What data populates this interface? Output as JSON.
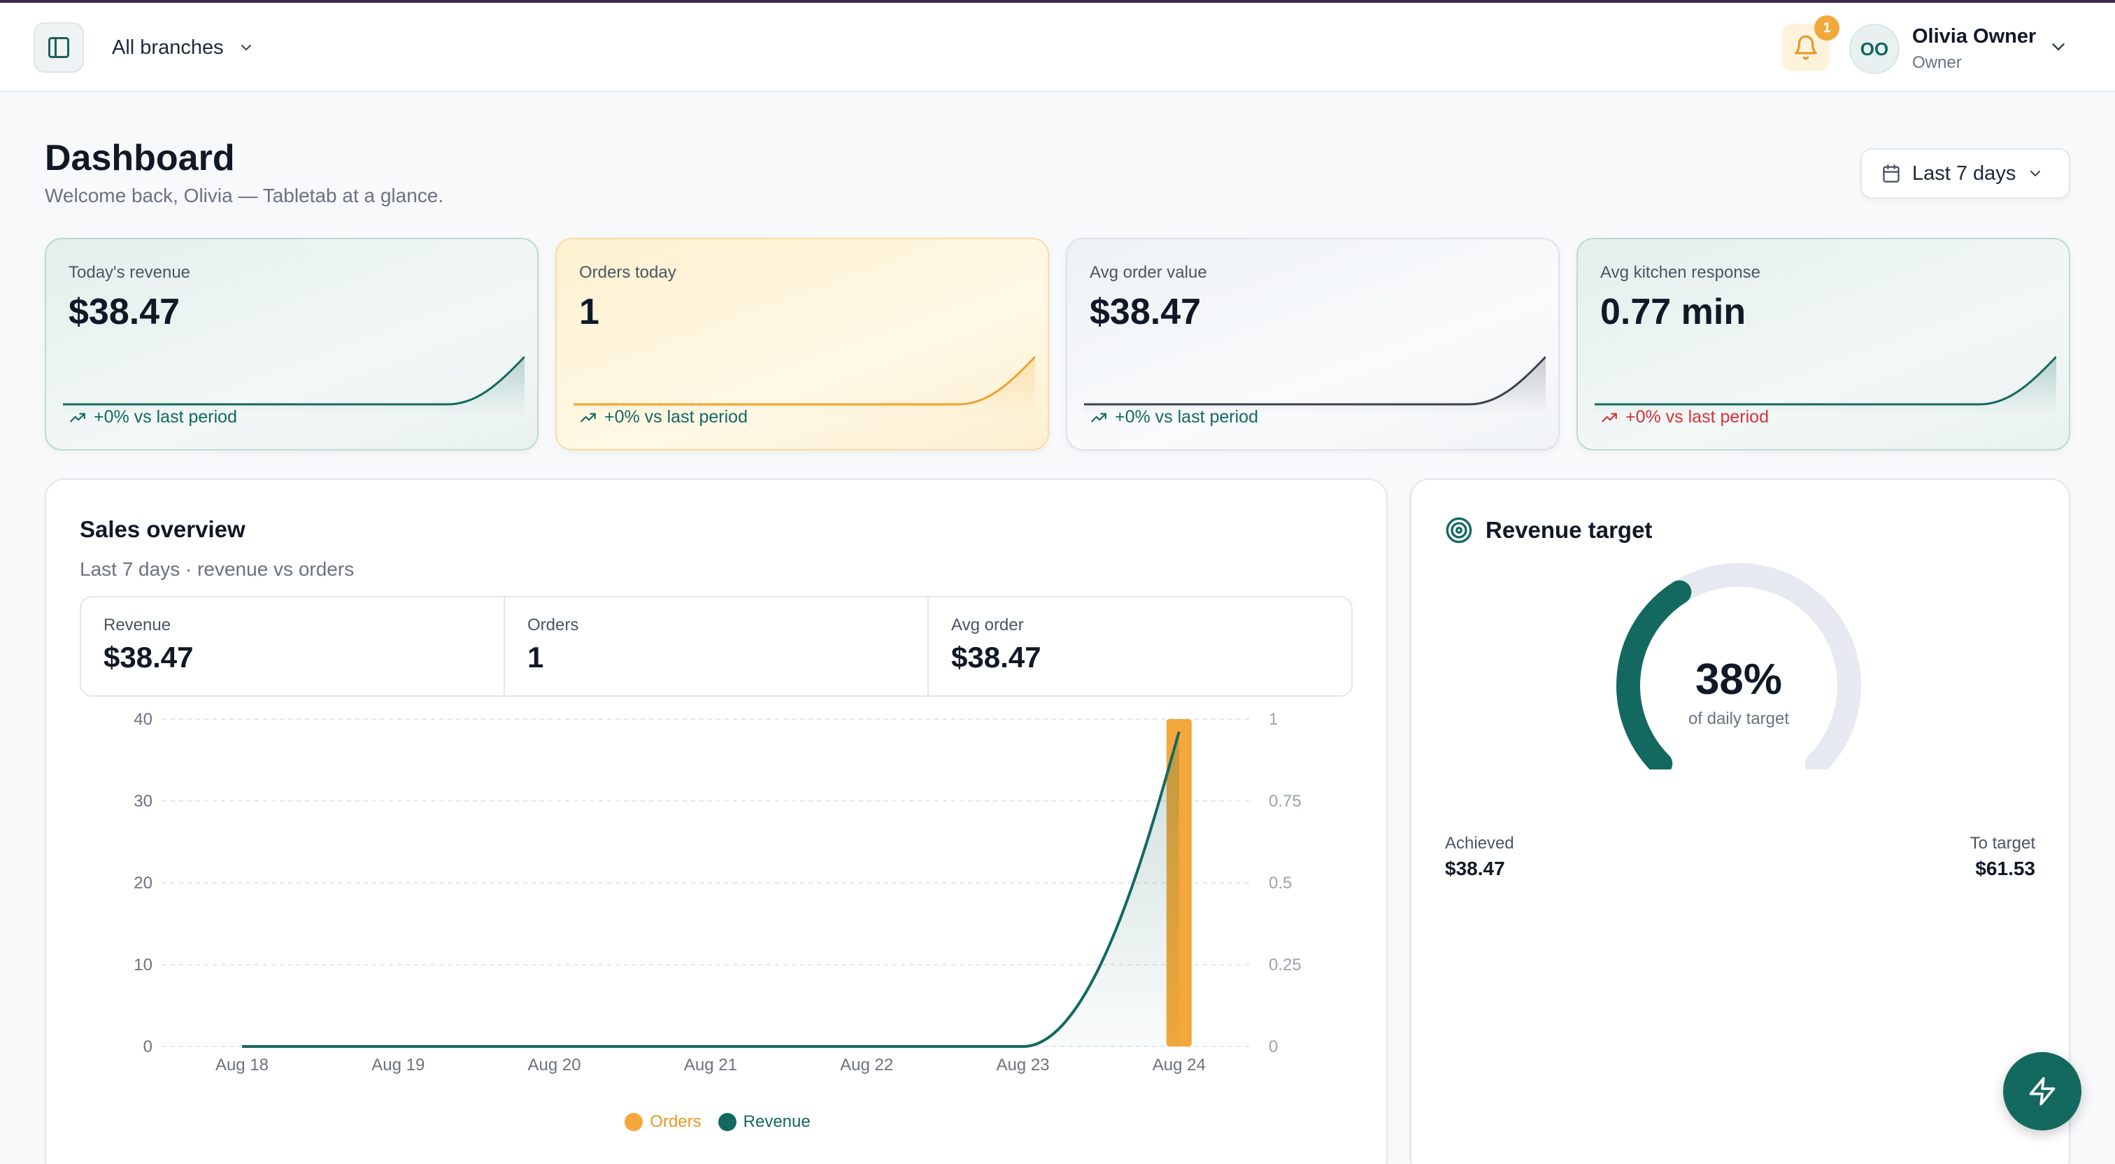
{
  "topbar": {
    "branch_label": "All branches",
    "notification_count": "1",
    "user": {
      "initials": "OO",
      "name": "Olivia Owner",
      "role": "Owner"
    }
  },
  "header": {
    "title": "Dashboard",
    "subtitle": "Welcome back, Olivia — Tabletab at a glance.",
    "range_label": "Last 7 days"
  },
  "kpis": [
    {
      "label": "Today's revenue",
      "value": "$38.47",
      "trend": "+0% vs last period",
      "trend_dir": "up",
      "color": "#13695f"
    },
    {
      "label": "Orders today",
      "value": "1",
      "trend": "+0% vs last period",
      "trend_dir": "up",
      "color": "#f0a12c"
    },
    {
      "label": "Avg order value",
      "value": "$38.47",
      "trend": "+0% vs last period",
      "trend_dir": "up",
      "color": "#3a4150"
    },
    {
      "label": "Avg kitchen response",
      "value": "0.77 min",
      "trend": "+0% vs last period",
      "trend_dir": "down",
      "color": "#13695f"
    }
  ],
  "sales": {
    "title": "Sales overview",
    "subtitle": "Last 7 days · revenue vs orders",
    "stats": [
      {
        "label": "Revenue",
        "value": "$38.47"
      },
      {
        "label": "Orders",
        "value": "1"
      },
      {
        "label": "Avg order",
        "value": "$38.47"
      }
    ],
    "legend": {
      "orders": "Orders",
      "revenue": "Revenue"
    }
  },
  "chart_data": {
    "type": "bar",
    "categories": [
      "Aug 18",
      "Aug 19",
      "Aug 20",
      "Aug 21",
      "Aug 22",
      "Aug 23",
      "Aug 24"
    ],
    "series": [
      {
        "name": "Orders",
        "type": "bar",
        "axis": "right",
        "color": "#f4a73a",
        "values": [
          0,
          0,
          0,
          0,
          0,
          0,
          1
        ]
      },
      {
        "name": "Revenue",
        "type": "area",
        "axis": "left",
        "color": "#13695f",
        "values": [
          0,
          0,
          0,
          0,
          0,
          0,
          38.47
        ]
      }
    ],
    "y_left": {
      "ticks": [
        "0",
        "10",
        "20",
        "30",
        "40"
      ],
      "lim": [
        0,
        40
      ]
    },
    "y_right": {
      "ticks": [
        "0",
        "0.25",
        "0.5",
        "0.75",
        "1"
      ],
      "lim": [
        0,
        1
      ]
    },
    "grid": true,
    "legend_position": "bottom-center"
  },
  "target": {
    "title": "Revenue target",
    "percent": "38%",
    "percent_value": 38,
    "caption": "of daily target",
    "achieved_label": "Achieved",
    "achieved_value": "$38.47",
    "to_target_label": "To target",
    "to_target_value": "$61.53",
    "track_color": "#e6eaf0",
    "fill_color": "#13695f"
  },
  "colors": {
    "brand": "#13695f",
    "accent": "#f4a73a",
    "negative": "#d6323a"
  }
}
